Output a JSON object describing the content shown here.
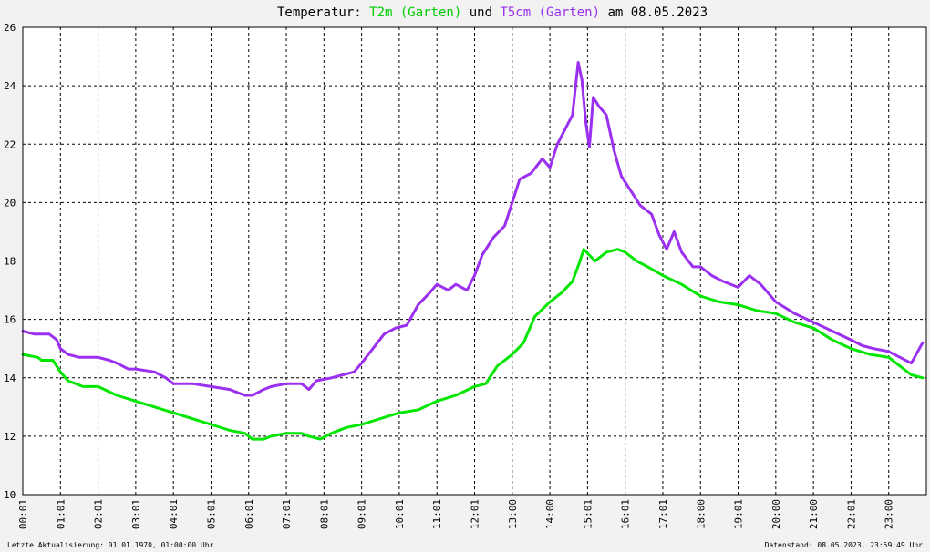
{
  "title": {
    "prefix": "Temperatur: ",
    "series1": "T2m (Garten)",
    "middle": " und ",
    "series2": "T5cm (Garten)",
    "suffix": " am 08.05.2023"
  },
  "footer": {
    "left": "Letzte Aktualisierung: 01.01.1970, 01:00:00 Uhr",
    "right": "Datenstand: 08.05.2023, 23:59:49 Uhr"
  },
  "colors": {
    "background": "#f2f2f2",
    "plot_background": "#ffffff",
    "grid": "#000000",
    "t2m": "#00e600",
    "t5cm": "#9b30f0"
  },
  "chart_data": {
    "type": "line",
    "title": "Temperatur: T2m (Garten) und T5cm (Garten) am 08.05.2023",
    "xlabel": "",
    "ylabel": "",
    "xlim": [
      0,
      24
    ],
    "ylim": [
      10,
      26
    ],
    "grid": true,
    "legend": "in title",
    "x_ticks": [
      "00:01",
      "01:01",
      "02:01",
      "03:01",
      "04:01",
      "05:01",
      "06:01",
      "07:01",
      "08:01",
      "09:01",
      "10:01",
      "11:01",
      "12:01",
      "13:00",
      "14:00",
      "15:01",
      "16:01",
      "17:01",
      "18:00",
      "19:01",
      "20:00",
      "21:00",
      "22:01",
      "23:00"
    ],
    "y_ticks": [
      10,
      12,
      14,
      16,
      18,
      20,
      22,
      24,
      26
    ],
    "series": [
      {
        "name": "T2m (Garten)",
        "color": "#00e600",
        "x": [
          0,
          0.4,
          0.5,
          0.8,
          1.0,
          1.2,
          1.6,
          2.0,
          2.5,
          3.0,
          3.5,
          4.0,
          4.5,
          5.0,
          5.5,
          5.9,
          6.1,
          6.4,
          6.6,
          7.0,
          7.4,
          7.6,
          7.9,
          8.2,
          8.6,
          9.0,
          9.5,
          10.0,
          10.5,
          11.0,
          11.5,
          12.0,
          12.3,
          12.6,
          13.0,
          13.3,
          13.6,
          14.0,
          14.3,
          14.6,
          14.8,
          14.9,
          15.2,
          15.5,
          15.8,
          16.0,
          16.3,
          16.6,
          17.0,
          17.5,
          18.0,
          18.5,
          19.0,
          19.5,
          20.0,
          20.5,
          21.0,
          21.5,
          22.0,
          22.5,
          23.0,
          23.3,
          23.6,
          23.9
        ],
        "values": [
          14.8,
          14.7,
          14.6,
          14.6,
          14.2,
          13.9,
          13.7,
          13.7,
          13.4,
          13.2,
          13.0,
          12.8,
          12.6,
          12.4,
          12.2,
          12.1,
          11.9,
          11.9,
          12.0,
          12.1,
          12.1,
          12.0,
          11.9,
          12.1,
          12.3,
          12.4,
          12.6,
          12.8,
          12.9,
          13.2,
          13.4,
          13.7,
          13.8,
          14.4,
          14.8,
          15.2,
          16.1,
          16.6,
          16.9,
          17.3,
          18.0,
          18.4,
          18.0,
          18.3,
          18.4,
          18.3,
          18.0,
          17.8,
          17.5,
          17.2,
          16.8,
          16.6,
          16.5,
          16.3,
          16.2,
          15.9,
          15.7,
          15.3,
          15.0,
          14.8,
          14.7,
          14.4,
          14.1,
          14.0
        ]
      },
      {
        "name": "T5cm (Garten)",
        "color": "#9b30f0",
        "x": [
          0,
          0.3,
          0.7,
          0.9,
          1.0,
          1.2,
          1.5,
          2.0,
          2.3,
          2.5,
          2.8,
          3.0,
          3.5,
          3.8,
          4.0,
          4.5,
          5.0,
          5.5,
          5.9,
          6.1,
          6.4,
          6.6,
          7.0,
          7.4,
          7.6,
          7.8,
          8.2,
          8.5,
          8.8,
          9.0,
          9.3,
          9.6,
          9.9,
          10.2,
          10.5,
          10.8,
          11.0,
          11.3,
          11.5,
          11.8,
          12.0,
          12.2,
          12.5,
          12.8,
          13.0,
          13.2,
          13.5,
          13.8,
          14.0,
          14.2,
          14.4,
          14.6,
          14.75,
          14.85,
          14.95,
          15.05,
          15.15,
          15.3,
          15.5,
          15.7,
          15.9,
          16.1,
          16.4,
          16.7,
          16.9,
          17.1,
          17.3,
          17.5,
          17.8,
          18.0,
          18.3,
          18.6,
          19.0,
          19.3,
          19.6,
          20.0,
          20.5,
          21.0,
          21.5,
          22.0,
          22.3,
          22.6,
          23.0,
          23.3,
          23.6,
          23.9
        ],
        "values": [
          15.6,
          15.5,
          15.5,
          15.3,
          15.0,
          14.8,
          14.7,
          14.7,
          14.6,
          14.5,
          14.3,
          14.3,
          14.2,
          14.0,
          13.8,
          13.8,
          13.7,
          13.6,
          13.4,
          13.4,
          13.6,
          13.7,
          13.8,
          13.8,
          13.6,
          13.9,
          14.0,
          14.1,
          14.2,
          14.5,
          15.0,
          15.5,
          15.7,
          15.8,
          16.5,
          16.9,
          17.2,
          17.0,
          17.2,
          17.0,
          17.5,
          18.2,
          18.8,
          19.2,
          20.0,
          20.8,
          21.0,
          21.5,
          21.2,
          22.0,
          22.5,
          23.0,
          24.8,
          24.2,
          22.8,
          21.9,
          23.6,
          23.3,
          23.0,
          21.8,
          20.9,
          20.5,
          19.9,
          19.6,
          18.9,
          18.4,
          19.0,
          18.3,
          17.8,
          17.8,
          17.5,
          17.3,
          17.1,
          17.5,
          17.2,
          16.6,
          16.2,
          15.9,
          15.6,
          15.3,
          15.1,
          15.0,
          14.9,
          14.7,
          14.5,
          15.2
        ]
      }
    ]
  }
}
